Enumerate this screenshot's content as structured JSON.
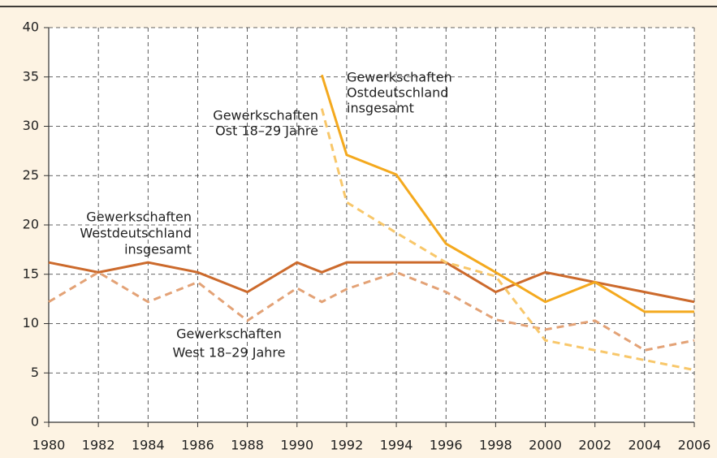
{
  "chart_data": {
    "type": "line",
    "x": [
      1980,
      1982,
      1984,
      1986,
      1988,
      1990,
      1991,
      1992,
      1994,
      1996,
      1998,
      2000,
      2002,
      2004,
      2006
    ],
    "series": [
      {
        "name": "Gewerkschaften Westdeutschland insgesamt",
        "color": "#cc6a2c",
        "dashed": false,
        "values": [
          16.2,
          15.2,
          16.2,
          15.2,
          13.2,
          16.2,
          15.2,
          16.2,
          16.2,
          16.2,
          13.2,
          15.2,
          14.2,
          13.2,
          12.2
        ]
      },
      {
        "name": "Gewerkschaften West 18–29 Jahre",
        "color": "#e3a276",
        "dashed": true,
        "values": [
          12.2,
          15.2,
          12.2,
          14.2,
          10.3,
          13.6,
          12.2,
          13.5,
          15.2,
          13.2,
          10.4,
          9.4,
          10.3,
          7.3,
          8.3
        ]
      },
      {
        "name": "Gewerkschaften Ostdeutschland insgesamt",
        "color": "#f4a91e",
        "dashed": false,
        "values": [
          null,
          null,
          null,
          null,
          null,
          null,
          35.2,
          27.1,
          25.1,
          18.1,
          15.2,
          12.2,
          14.2,
          11.2,
          11.2
        ]
      },
      {
        "name": "Gewerkschaften Ost 18–29 Jahre",
        "color": "#f8c76a",
        "dashed": true,
        "values": [
          null,
          null,
          null,
          null,
          null,
          null,
          31.8,
          22.3,
          19.2,
          16.2,
          14.8,
          8.3,
          7.3,
          6.3,
          5.3
        ]
      }
    ],
    "annotations": [
      {
        "lines": [
          "Gewerkschaften",
          "Westdeutschland",
          "insgesamt"
        ]
      },
      {
        "lines": [
          "Gewerkschaften",
          "West 18–29 Jahre"
        ]
      },
      {
        "lines": [
          "Gewerkschaften",
          "Ostdeutschland",
          "insgesamt"
        ]
      },
      {
        "lines": [
          "Gewerkschaften",
          "Ost 18–29 Jahre"
        ]
      }
    ],
    "xlim": [
      1980,
      2006
    ],
    "xticks": [
      1980,
      1982,
      1984,
      1986,
      1988,
      1990,
      1992,
      1994,
      1996,
      1998,
      2000,
      2002,
      2004,
      2006
    ],
    "ylim": [
      0,
      40
    ],
    "yticks": [
      0,
      5,
      10,
      15,
      20,
      25,
      30,
      35,
      40
    ],
    "grid": true
  }
}
